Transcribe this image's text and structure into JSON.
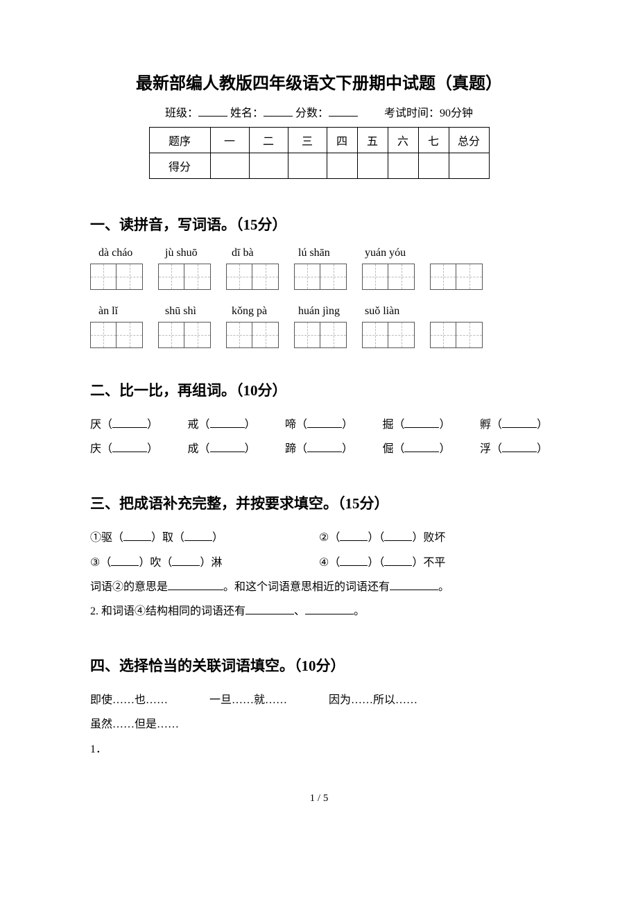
{
  "title": "最新部编人教版四年级语文下册期中试题（真题）",
  "meta": {
    "class_label": "班级：",
    "name_label": "姓名：",
    "score_label": "分数：",
    "exam_time": "考试时间：90分钟"
  },
  "score_table": {
    "row1_label": "题序",
    "cols": [
      "一",
      "二",
      "三",
      "四",
      "五",
      "六",
      "七",
      "总分"
    ],
    "row2_label": "得分"
  },
  "section1": {
    "title": "一、读拼音，写词语。（15分）",
    "pinyin_row1": [
      "dà cháo",
      "jù shuō",
      "dī bà",
      "lú shān",
      "yuán yóu"
    ],
    "pinyin_row2": [
      "àn lǐ",
      "shū shì",
      "kǒng pà",
      "huán jìng",
      "suǒ liàn"
    ]
  },
  "section2": {
    "title": "二、比一比，再组词。（10分）",
    "row1": [
      "厌",
      "戒",
      "啼",
      "掘",
      "孵"
    ],
    "row2": [
      "庆",
      "成",
      "蹄",
      "倔",
      "浮"
    ]
  },
  "section3": {
    "title": "三、把成语补充完整，并按要求填空。（15分）",
    "line1a": "①驱（",
    "line1b": "）取（",
    "line1c": "）",
    "line1d": "②（",
    "line1e": "）（",
    "line1f": "）败坏",
    "line2a": "③（",
    "line2b": "）吹（",
    "line2c": "）淋",
    "line2d": "④（",
    "line2e": "）（",
    "line2f": "）不平",
    "line3a": "词语②的意思是",
    "line3b": "。和这个词语意思相近的词语还有",
    "line3c": "。",
    "line4a": "2. 和词语④结构相同的词语还有",
    "line4b": "、",
    "line4c": "。"
  },
  "section4": {
    "title": "四、选择恰当的关联词语填空。（10分）",
    "options": [
      "即使……也……",
      "一旦……就……",
      "因为……所以……",
      "虽然……但是……"
    ],
    "item1": "1．"
  },
  "page_number": "1 / 5"
}
